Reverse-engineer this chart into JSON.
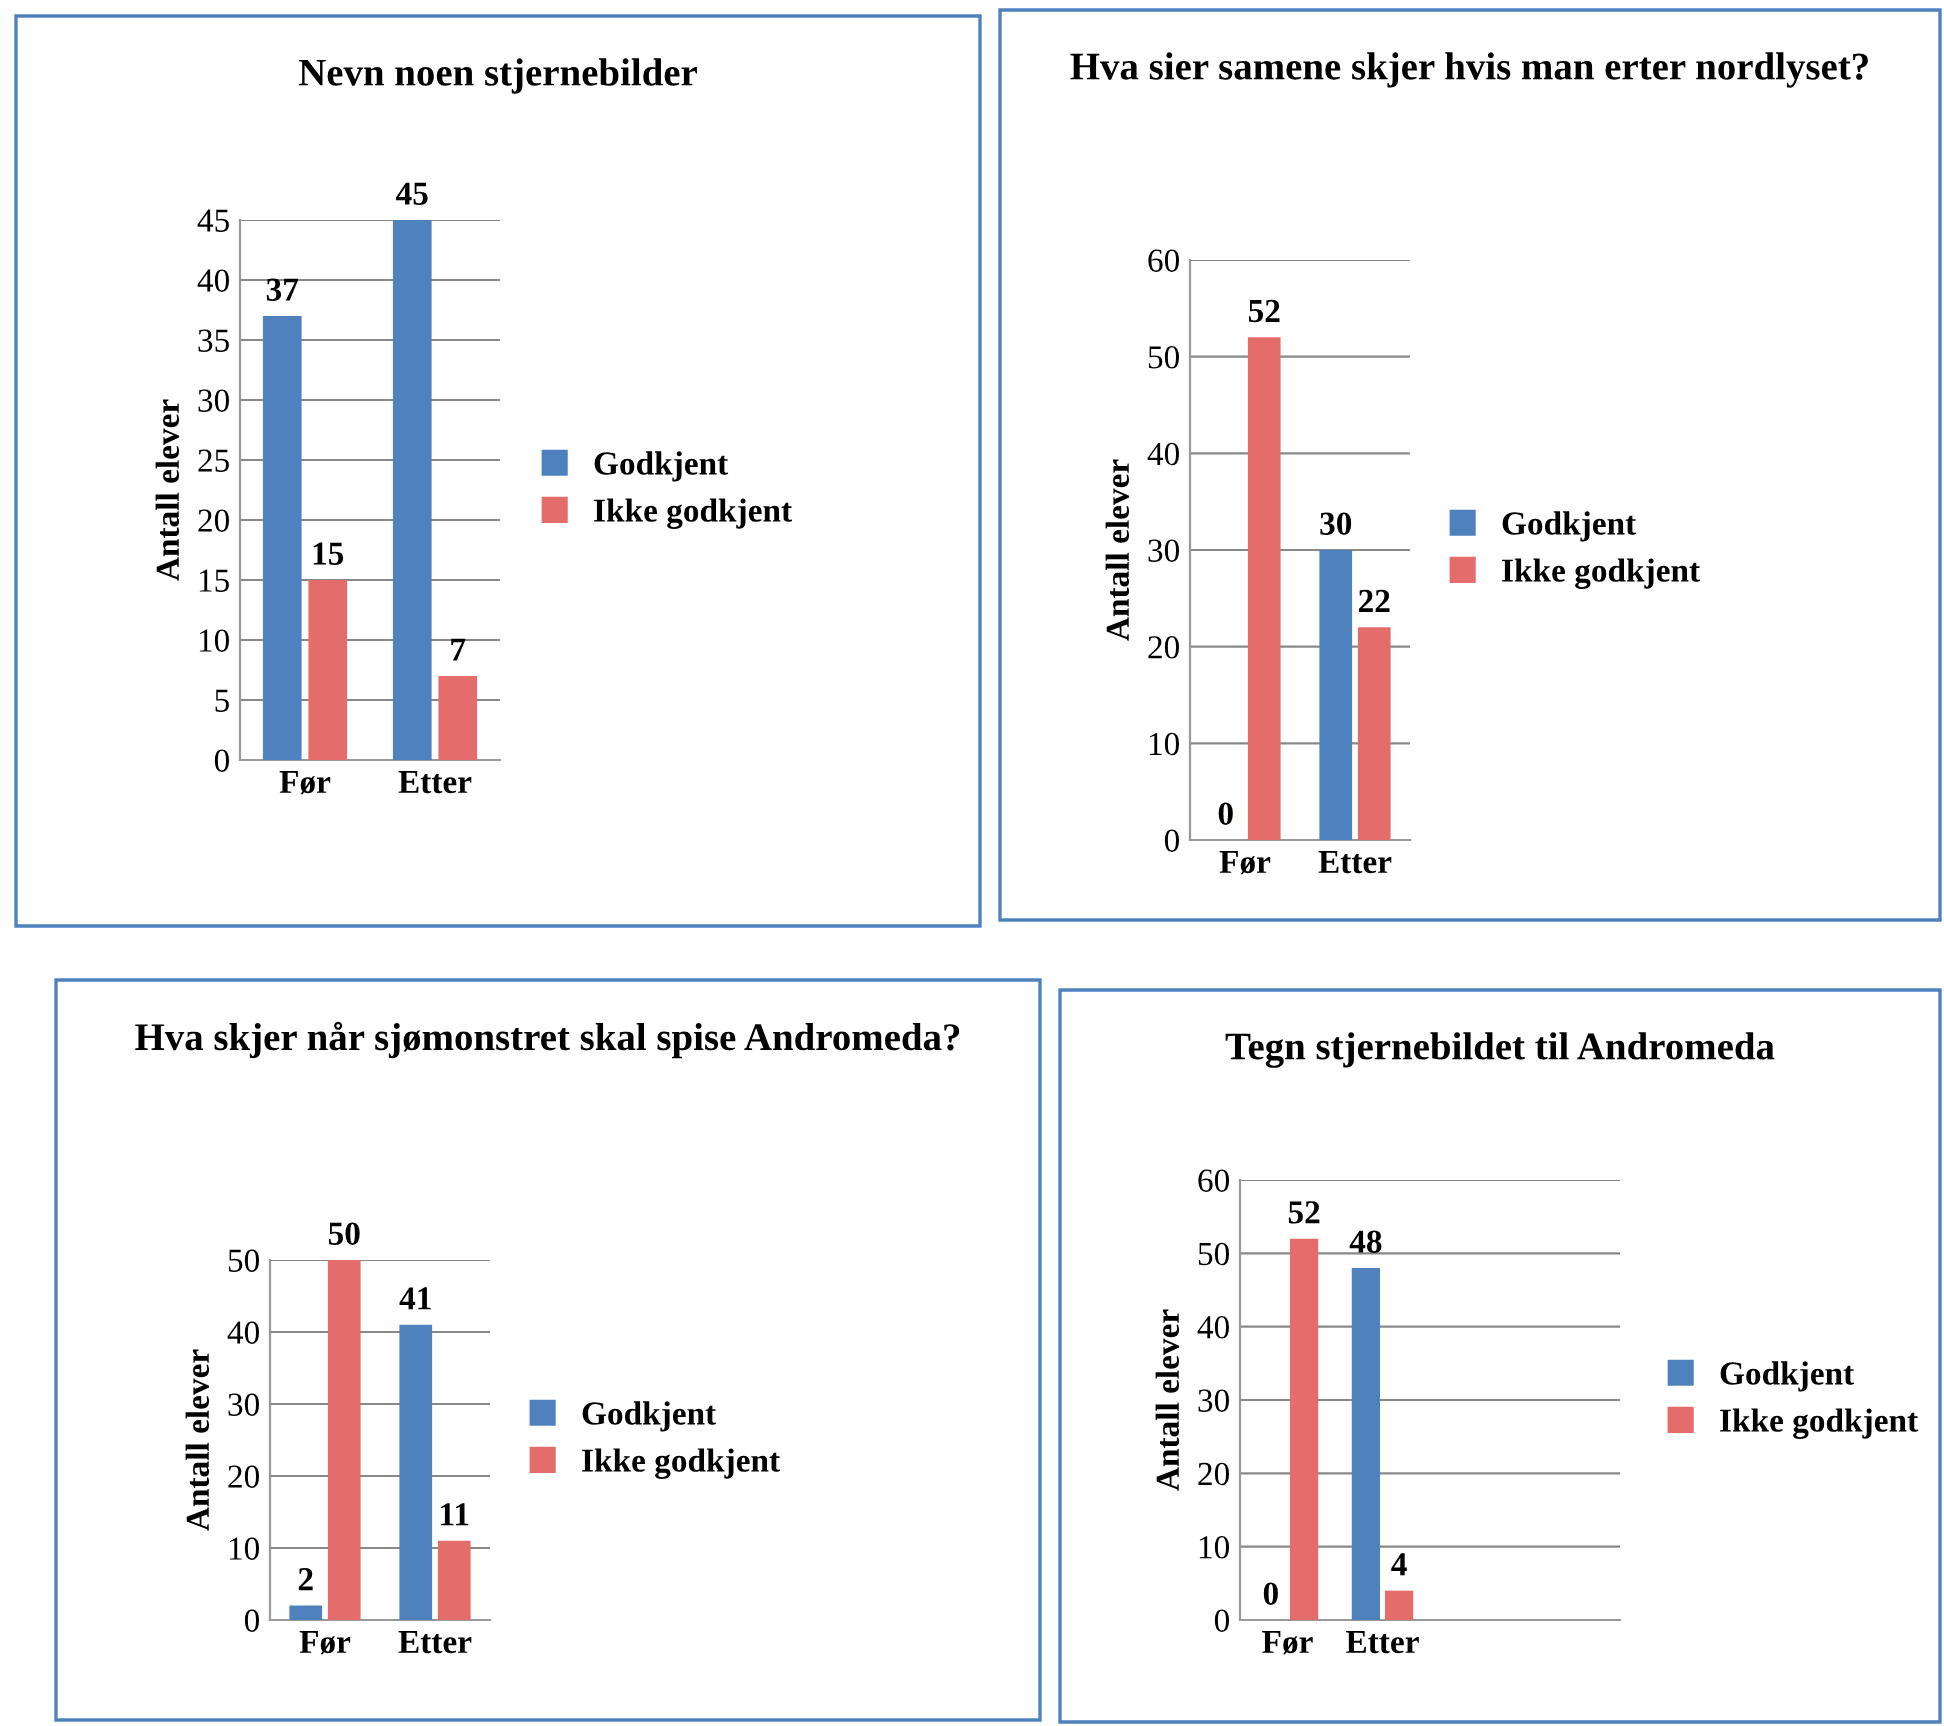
{
  "chart_data": [
    {
      "type": "bar",
      "title": "Nevn noen stjernebilder",
      "ylabel": "Antall elever",
      "categories": [
        "Før",
        "Etter"
      ],
      "series": [
        {
          "name": "Godkjent",
          "color": "#4f81bd",
          "values": [
            37,
            45
          ]
        },
        {
          "name": "Ikke godkjent",
          "color": "#e46c6a",
          "values": [
            15,
            7
          ]
        }
      ],
      "ylim": [
        0,
        45
      ],
      "yticks": [
        0,
        5,
        10,
        15,
        20,
        25,
        30,
        35,
        40,
        45
      ],
      "grid": "y",
      "legend": "right",
      "data_labels": true
    },
    {
      "type": "bar",
      "title": "Hva sier samene skjer hvis man erter nordlyset?",
      "ylabel": "Antall elever",
      "categories": [
        "Før",
        "Etter"
      ],
      "series": [
        {
          "name": "Godkjent",
          "color": "#4f81bd",
          "values": [
            0,
            30
          ]
        },
        {
          "name": "Ikke godkjent",
          "color": "#e46c6a",
          "values": [
            52,
            22
          ]
        }
      ],
      "ylim": [
        0,
        60
      ],
      "yticks": [
        0,
        10,
        20,
        30,
        40,
        50,
        60
      ],
      "grid": "y",
      "legend": "right",
      "data_labels": true
    },
    {
      "type": "bar",
      "title": "Hva skjer når sjømonstret skal spise Andromeda?",
      "ylabel": "Antall elever",
      "categories": [
        "Før",
        "Etter"
      ],
      "series": [
        {
          "name": "Godkjent",
          "color": "#4f81bd",
          "values": [
            2,
            41
          ]
        },
        {
          "name": "Ikke godkjent",
          "color": "#e46c6a",
          "values": [
            50,
            11
          ]
        }
      ],
      "ylim": [
        0,
        50
      ],
      "yticks": [
        0,
        10,
        20,
        30,
        40,
        50
      ],
      "grid": "y",
      "legend": "right",
      "data_labels": true
    },
    {
      "type": "bar",
      "title": "Tegn stjernebildet til Andromeda",
      "ylabel": "Antall elever",
      "categories": [
        "Før",
        "Etter",
        null,
        null
      ],
      "series": [
        {
          "name": "Godkjent",
          "color": "#4f81bd",
          "values": [
            0,
            48,
            null,
            null
          ]
        },
        {
          "name": "Ikke godkjent",
          "color": "#e46c6a",
          "values": [
            52,
            4,
            null,
            null
          ]
        }
      ],
      "ylim": [
        0,
        60
      ],
      "yticks": [
        0,
        10,
        20,
        30,
        40,
        50,
        60
      ],
      "grid": "y",
      "legend": "right",
      "data_labels": true
    }
  ]
}
